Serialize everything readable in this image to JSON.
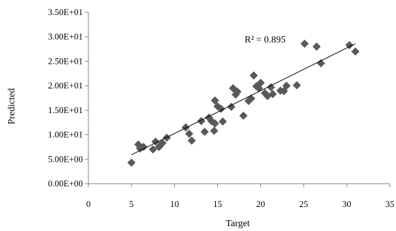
{
  "chart_data": {
    "type": "scatter",
    "xlabel": "Target",
    "ylabel": "Predicted",
    "xlim": [
      0,
      35
    ],
    "ylim": [
      0,
      35
    ],
    "xticks": [
      "0",
      "5",
      "10",
      "15",
      "20",
      "25",
      "30",
      "35"
    ],
    "yticks": [
      "0.00E+00",
      "5.00E+00",
      "1.00E+01",
      "1.50E+01",
      "2.00E+01",
      "2.50E+01",
      "3.00E+01",
      "3.50E+01"
    ],
    "grid": false,
    "legend": "none",
    "marker": "diamond",
    "marker_color": "#595959",
    "trendline": {
      "type": "linear",
      "color": "#000000",
      "from": [
        5,
        5.9
      ],
      "to": [
        31,
        28.6
      ],
      "annotation": "R² = 0.895"
    },
    "points": [
      [
        5.0,
        4.3
      ],
      [
        5.8,
        8.0
      ],
      [
        6.0,
        7.2
      ],
      [
        6.4,
        7.5
      ],
      [
        7.5,
        7.0
      ],
      [
        7.8,
        8.6
      ],
      [
        8.2,
        7.5
      ],
      [
        8.6,
        8.3
      ],
      [
        9.1,
        9.4
      ],
      [
        11.3,
        11.5
      ],
      [
        11.7,
        10.2
      ],
      [
        12.0,
        8.8
      ],
      [
        13.1,
        12.8
      ],
      [
        13.5,
        10.6
      ],
      [
        14.0,
        13.5
      ],
      [
        14.3,
        12.8
      ],
      [
        14.6,
        10.8
      ],
      [
        14.7,
        12.3
      ],
      [
        14.7,
        17.0
      ],
      [
        15.0,
        15.8
      ],
      [
        15.4,
        15.3
      ],
      [
        15.6,
        12.7
      ],
      [
        16.6,
        15.7
      ],
      [
        16.8,
        19.5
      ],
      [
        17.1,
        18.2
      ],
      [
        17.3,
        18.8
      ],
      [
        18.0,
        13.9
      ],
      [
        18.6,
        16.9
      ],
      [
        18.9,
        17.4
      ],
      [
        19.2,
        22.1
      ],
      [
        19.5,
        19.9
      ],
      [
        19.8,
        19.5
      ],
      [
        20.0,
        20.6
      ],
      [
        20.5,
        18.5
      ],
      [
        20.8,
        17.9
      ],
      [
        21.2,
        19.7
      ],
      [
        21.4,
        18.3
      ],
      [
        22.3,
        19.0
      ],
      [
        22.7,
        18.9
      ],
      [
        23.0,
        20.0
      ],
      [
        24.2,
        20.1
      ],
      [
        25.1,
        28.6
      ],
      [
        26.5,
        28.0
      ],
      [
        27.0,
        24.6
      ],
      [
        30.3,
        28.3
      ],
      [
        31.0,
        27.0
      ]
    ]
  }
}
